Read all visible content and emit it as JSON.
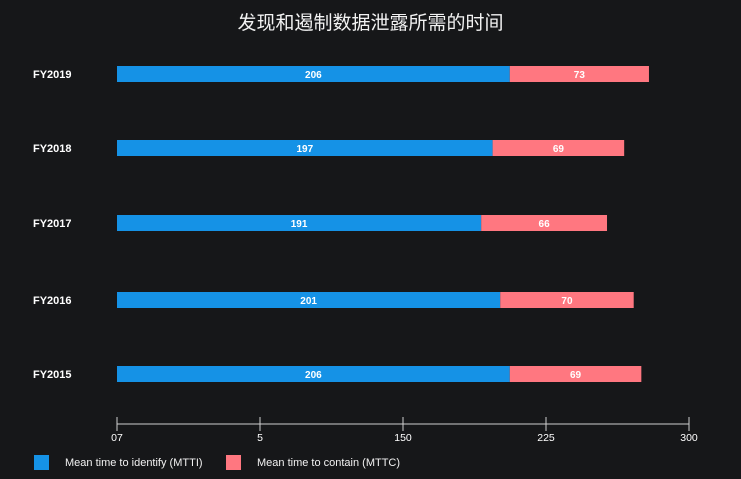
{
  "title": "发现和遏制数据泄露所需的时间",
  "chart_data": {
    "type": "bar",
    "stacked": true,
    "orientation": "horizontal",
    "categories": [
      "FY2019",
      "FY2018",
      "FY2017",
      "FY2016",
      "FY2015"
    ],
    "series": [
      {
        "name": "Mean time to identify (MTTI)",
        "values": [
          206,
          197,
          191,
          201,
          206
        ],
        "color": "#1592e6"
      },
      {
        "name": "Mean time to contain (MTTC)",
        "values": [
          73,
          69,
          66,
          70,
          69
        ],
        "color": "#ff7780"
      }
    ],
    "x_ticks": [
      "07",
      "5",
      "150",
      "225",
      "300"
    ],
    "xlim": [
      0,
      300
    ],
    "grid": false,
    "legend_position": "bottom-left"
  }
}
